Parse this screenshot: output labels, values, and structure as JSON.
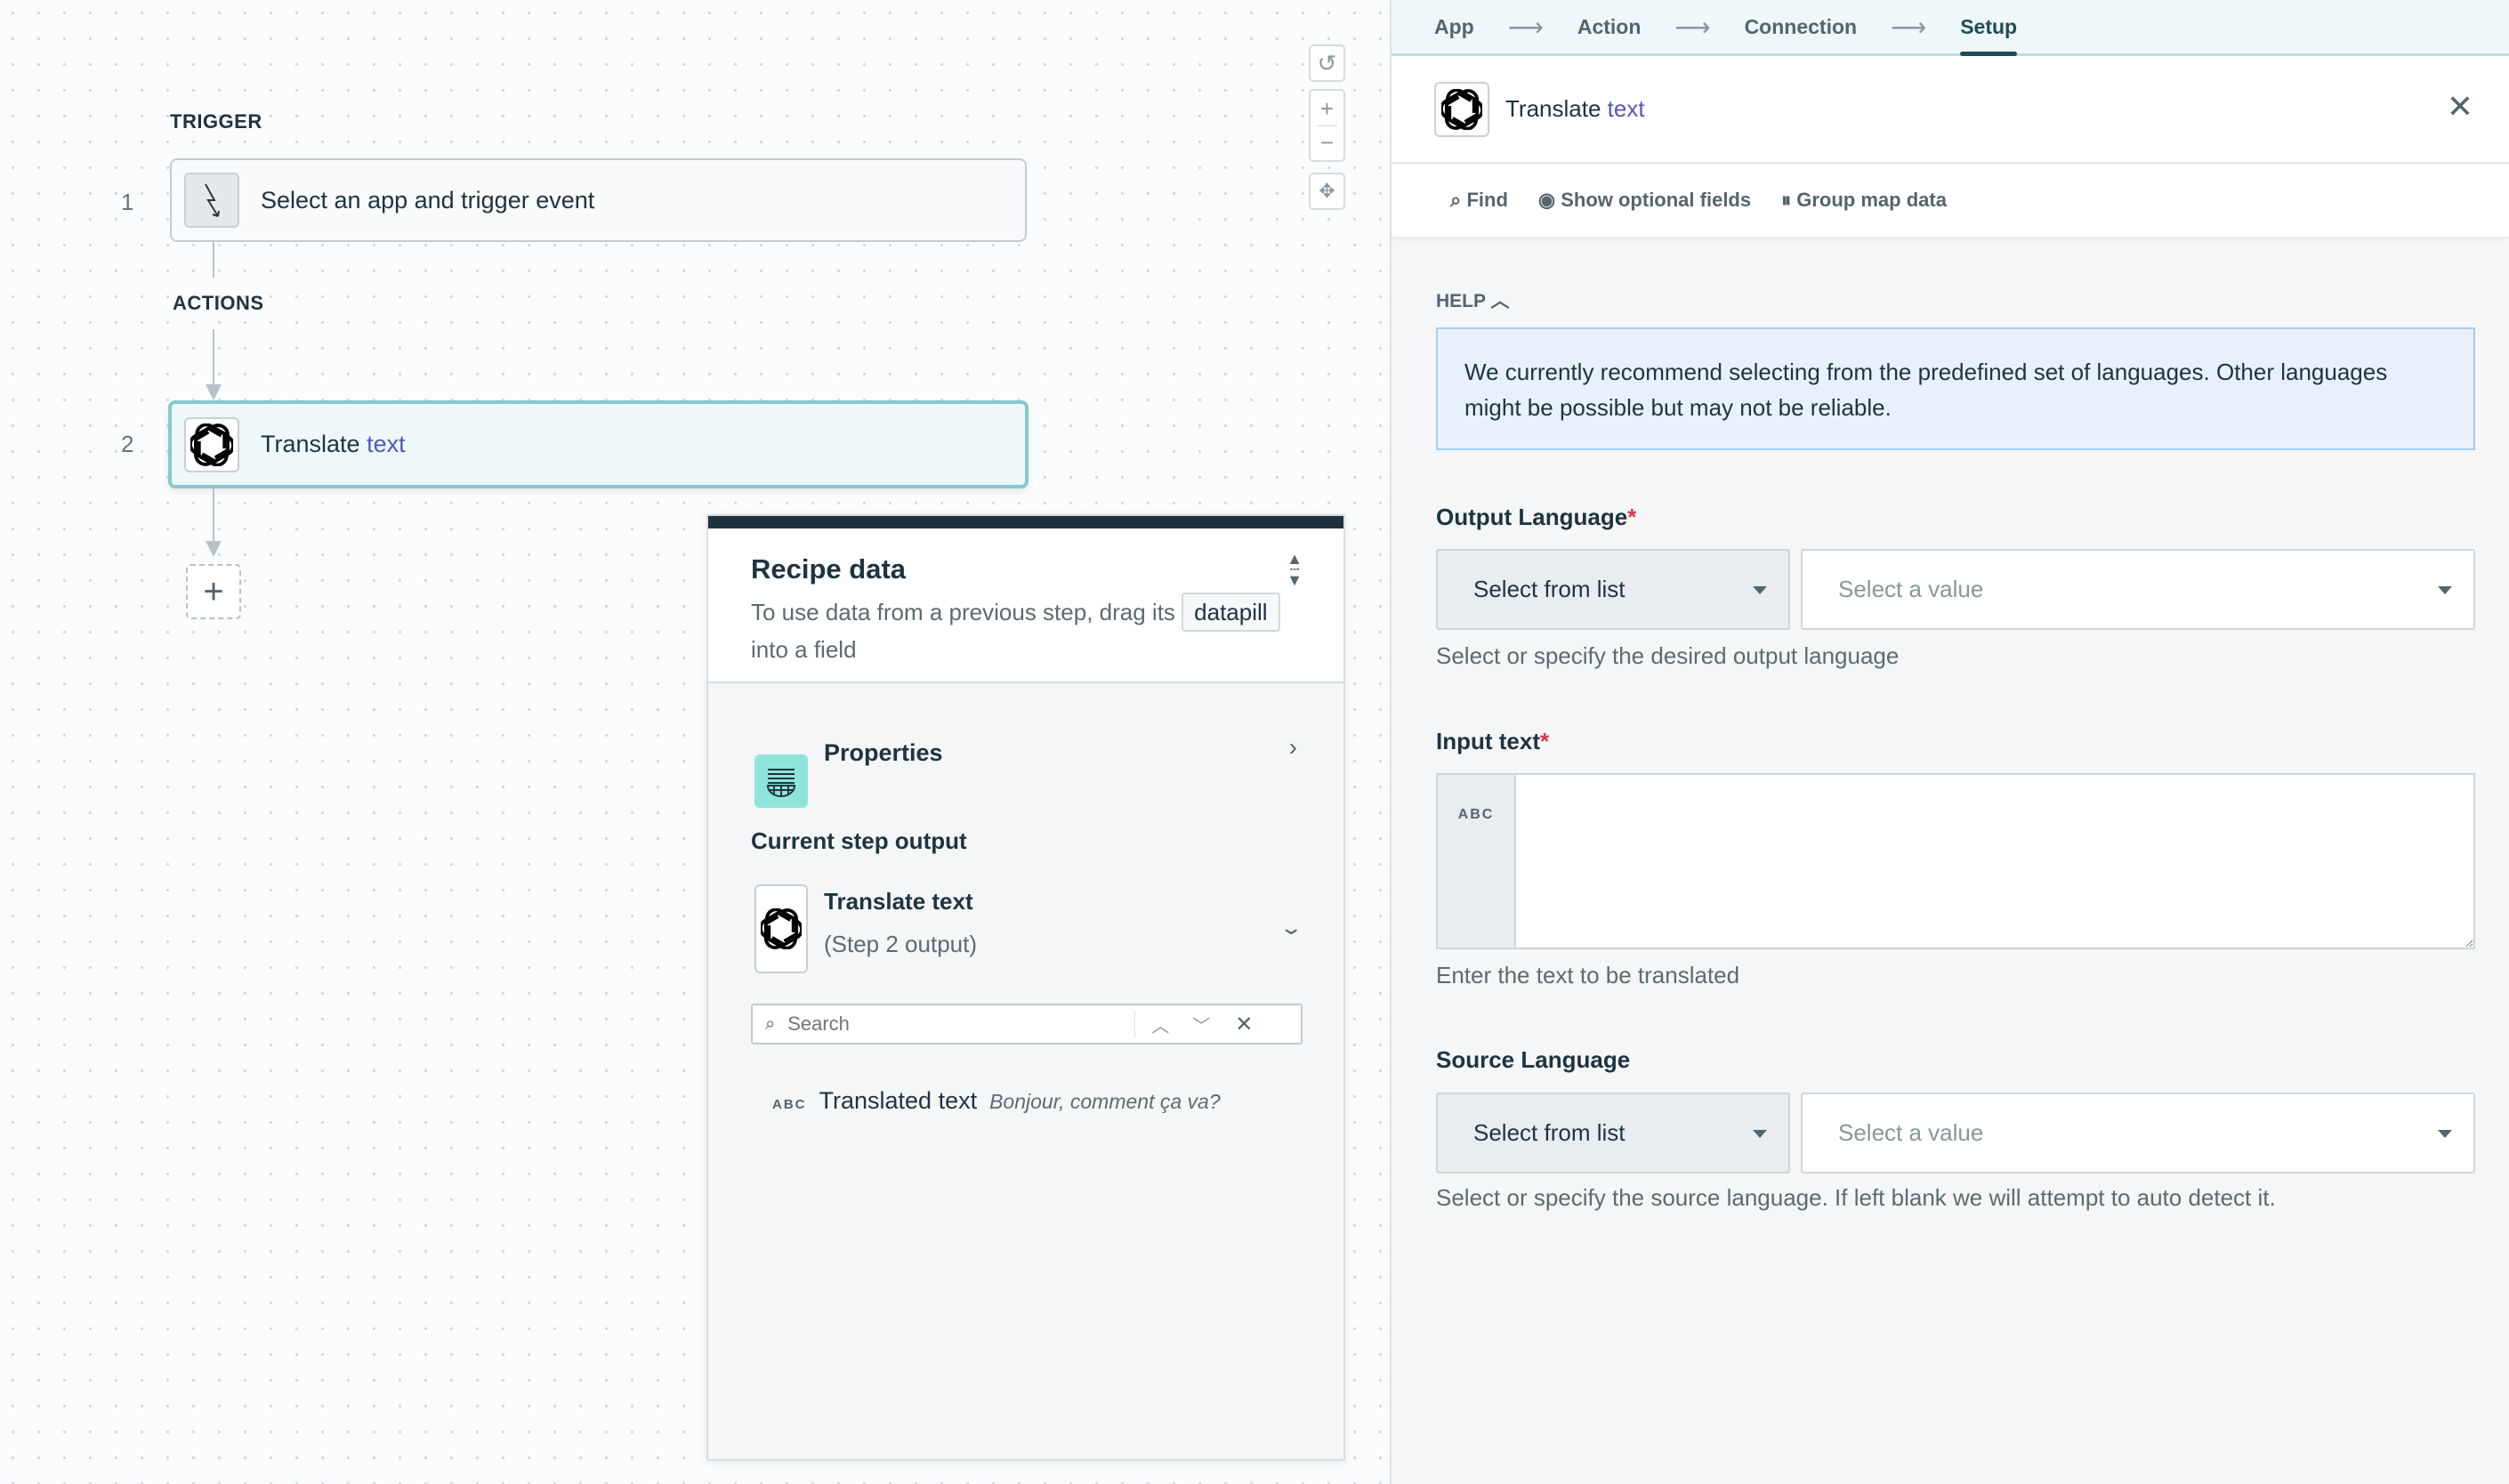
{
  "canvas": {
    "trigger_label": "TRIGGER",
    "actions_label": "ACTIONS",
    "steps": [
      {
        "number": "1",
        "title": "Select an app and trigger event",
        "icon": "lightning-icon"
      },
      {
        "number": "2",
        "title": "Translate",
        "title_accent": "text",
        "icon": "openai-icon"
      }
    ],
    "zoom_controls": {
      "reset": "↺",
      "zoom_in": "+",
      "zoom_out": "−",
      "fit": "✥"
    },
    "add_step": "+"
  },
  "recipe_data": {
    "title": "Recipe data",
    "description_before": "To use data from a previous step, drag its",
    "pill": "datapill",
    "description_after": "into a field",
    "properties": "Properties",
    "current_output_label": "Current step output",
    "step_title": "Translate text",
    "step_sub": "(Step 2 output)",
    "search_placeholder": "Search",
    "fields": [
      {
        "type": "ABC",
        "name": "Translated text",
        "sample": "Bonjour, comment ça va?"
      }
    ]
  },
  "panel": {
    "breadcrumbs": [
      "App",
      "Action",
      "Connection",
      "Setup"
    ],
    "active_breadcrumb": "Setup",
    "title": "Translate",
    "title_accent": "text",
    "toolbar": {
      "find": "Find",
      "optional": "Show optional fields",
      "group": "Group map data"
    },
    "help_label": "HELP",
    "help_text": "We currently recommend selecting from the predefined set of languages. Other languages might be possible but may not be reliable.",
    "fields": {
      "output_language": {
        "label": "Output Language",
        "mode": "Select from list",
        "placeholder": "Select a value",
        "hint": "Select or specify the desired output language"
      },
      "input_text": {
        "label": "Input text",
        "type": "ABC",
        "hint": "Enter the text to be translated"
      },
      "source_language": {
        "label": "Source Language",
        "mode": "Select from list",
        "placeholder": "Select a value",
        "hint": "Select or specify the source language. If left blank we will attempt to auto detect it."
      }
    },
    "required_mark": "*"
  },
  "colors": {
    "accent": "#5458b5",
    "active_border": "#86c9cd",
    "dark": "#1e3240",
    "properties_icon_bg": "#8fe5dc"
  }
}
